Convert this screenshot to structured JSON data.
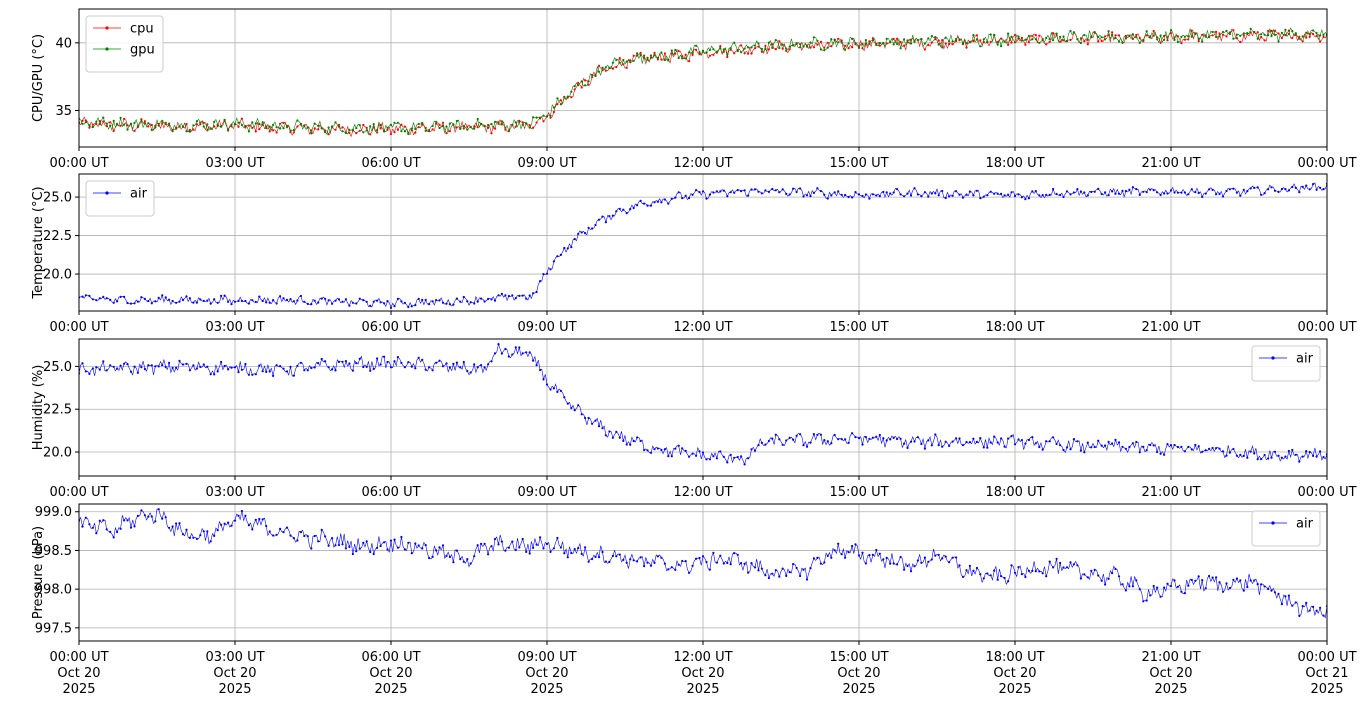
{
  "figure": {
    "x_tick_labels": [
      "00:00 UT",
      "03:00 UT",
      "06:00 UT",
      "09:00 UT",
      "12:00 UT",
      "15:00 UT",
      "18:00 UT",
      "21:00 UT",
      "00:00 UT"
    ],
    "x_tick_dates": [
      "Oct 20",
      "Oct 20",
      "Oct 20",
      "Oct 20",
      "Oct 20",
      "Oct 20",
      "Oct 20",
      "Oct 20",
      "Oct 21"
    ],
    "x_tick_years": [
      "2025",
      "2025",
      "2025",
      "2025",
      "2025",
      "2025",
      "2025",
      "2025",
      "2025"
    ]
  },
  "chart_data": [
    {
      "type": "line",
      "ylabel": "CPU/GPU (°C)",
      "ylim": [
        32.3,
        42.5
      ],
      "y_ticks": [
        35,
        40
      ],
      "y_tick_labels": [
        "35",
        "40"
      ],
      "xlim": [
        "2025-10-20 00:00",
        "2025-10-21 00:00"
      ],
      "grid": true,
      "legend_position": "upper-left",
      "x": [
        "00:00",
        "01:00",
        "02:00",
        "03:00",
        "04:00",
        "05:00",
        "06:00",
        "07:00",
        "08:00",
        "08:40",
        "09:00",
        "09:20",
        "09:40",
        "10:00",
        "10:20",
        "10:40",
        "11:00",
        "11:30",
        "12:00",
        "13:00",
        "14:00",
        "15:00",
        "16:00",
        "17:00",
        "18:00",
        "19:00",
        "20:00",
        "21:00",
        "22:00",
        "23:00",
        "24:00"
      ],
      "series": [
        {
          "name": "cpu",
          "color": "#ff0000",
          "values": [
            34.0,
            33.9,
            33.8,
            33.9,
            33.7,
            33.6,
            33.6,
            33.7,
            33.8,
            33.9,
            34.6,
            35.8,
            36.9,
            37.8,
            38.4,
            38.7,
            38.9,
            39.0,
            39.3,
            39.6,
            39.8,
            39.9,
            40.0,
            40.1,
            40.2,
            40.3,
            40.3,
            40.4,
            40.5,
            40.5,
            40.6
          ]
        },
        {
          "name": "gpu",
          "color": "#008000",
          "values": [
            34.1,
            34.0,
            33.9,
            34.0,
            33.8,
            33.7,
            33.7,
            33.8,
            33.9,
            34.0,
            34.7,
            35.9,
            37.0,
            37.9,
            38.5,
            38.8,
            39.0,
            39.1,
            39.4,
            39.7,
            39.9,
            40.0,
            40.1,
            40.2,
            40.3,
            40.4,
            40.4,
            40.5,
            40.6,
            40.6,
            40.7
          ]
        }
      ]
    },
    {
      "type": "line",
      "ylabel": "Temperature (°C)",
      "ylim": [
        17.6,
        26.5
      ],
      "y_ticks": [
        20.0,
        22.5,
        25.0
      ],
      "y_tick_labels": [
        "20.0",
        "22.5",
        "25.0"
      ],
      "xlim": [
        "2025-10-20 00:00",
        "2025-10-21 00:00"
      ],
      "grid": true,
      "legend_position": "upper-left",
      "x": [
        "00:00",
        "01:00",
        "02:00",
        "03:00",
        "04:00",
        "05:00",
        "06:00",
        "07:00",
        "08:00",
        "08:45",
        "09:00",
        "09:20",
        "09:40",
        "10:00",
        "10:20",
        "10:40",
        "11:00",
        "11:30",
        "12:00",
        "13:00",
        "14:00",
        "15:00",
        "16:00",
        "17:00",
        "18:00",
        "19:00",
        "20:00",
        "21:00",
        "22:00",
        "23:00",
        "24:00"
      ],
      "series": [
        {
          "name": "air",
          "color": "#0000ff",
          "values": [
            18.4,
            18.3,
            18.3,
            18.3,
            18.3,
            18.2,
            18.1,
            18.2,
            18.4,
            18.6,
            20.2,
            21.6,
            22.6,
            23.4,
            24.0,
            24.4,
            24.7,
            25.0,
            25.2,
            25.4,
            25.3,
            25.1,
            25.3,
            25.2,
            25.1,
            25.3,
            25.3,
            25.4,
            25.3,
            25.5,
            25.7
          ]
        }
      ]
    },
    {
      "type": "line",
      "ylabel": "Humidity (%)",
      "ylim": [
        18.6,
        26.6
      ],
      "y_ticks": [
        20.0,
        22.5,
        25.0
      ],
      "y_tick_labels": [
        "20.0",
        "22.5",
        "25.0"
      ],
      "xlim": [
        "2025-10-20 00:00",
        "2025-10-21 00:00"
      ],
      "grid": true,
      "legend_position": "upper-right",
      "x": [
        "00:00",
        "01:00",
        "02:00",
        "03:00",
        "04:00",
        "05:00",
        "06:00",
        "07:00",
        "07:50",
        "08:00",
        "08:40",
        "09:00",
        "09:20",
        "09:40",
        "10:00",
        "10:20",
        "10:40",
        "11:00",
        "11:30",
        "12:00",
        "12:50",
        "13:10",
        "14:00",
        "15:00",
        "16:00",
        "17:00",
        "18:00",
        "19:00",
        "20:00",
        "21:00",
        "22:00",
        "23:00",
        "24:00"
      ],
      "series": [
        {
          "name": "air",
          "color": "#0000ff",
          "values": [
            24.8,
            24.9,
            25.0,
            24.9,
            24.8,
            25.1,
            25.2,
            25.0,
            24.8,
            25.9,
            25.7,
            24.2,
            23.0,
            22.2,
            21.5,
            21.0,
            20.6,
            20.3,
            20.0,
            19.8,
            19.6,
            20.6,
            20.7,
            20.8,
            20.6,
            20.6,
            20.6,
            20.4,
            20.3,
            20.2,
            20.1,
            19.8,
            19.9
          ]
        }
      ]
    },
    {
      "type": "line",
      "ylabel": "Pressure (hPa)",
      "ylim": [
        997.33,
        999.1
      ],
      "y_ticks": [
        997.5,
        998.0,
        998.5,
        999.0
      ],
      "y_tick_labels": [
        "997.5",
        "998.0",
        "998.5",
        "999.0"
      ],
      "xlim": [
        "2025-10-20 00:00",
        "2025-10-21 00:00"
      ],
      "grid": true,
      "legend_position": "upper-right",
      "x": [
        "00:00",
        "00:40",
        "01:00",
        "01:30",
        "02:00",
        "02:30",
        "03:00",
        "03:30",
        "04:00",
        "04:30",
        "05:00",
        "05:30",
        "06:00",
        "06:30",
        "07:00",
        "07:30",
        "08:00",
        "08:30",
        "09:00",
        "09:30",
        "10:00",
        "11:00",
        "11:30",
        "12:00",
        "12:30",
        "13:00",
        "13:30",
        "14:00",
        "14:30",
        "15:00",
        "15:30",
        "16:00",
        "16:30",
        "17:00",
        "17:30",
        "18:00",
        "18:30",
        "19:00",
        "19:30",
        "20:00",
        "20:30",
        "21:00",
        "21:30",
        "22:00",
        "22:30",
        "23:00",
        "23:30",
        "24:00"
      ],
      "series": [
        {
          "name": "air",
          "color": "#0000ff",
          "values": [
            998.85,
            998.75,
            998.9,
            998.98,
            998.72,
            998.68,
            998.9,
            998.82,
            998.72,
            998.65,
            998.62,
            998.55,
            998.6,
            998.55,
            998.45,
            998.4,
            998.58,
            998.55,
            998.6,
            998.5,
            998.45,
            998.35,
            998.3,
            998.35,
            998.4,
            998.28,
            998.2,
            998.25,
            998.5,
            998.45,
            998.4,
            998.3,
            998.45,
            998.25,
            998.15,
            998.2,
            998.3,
            998.25,
            998.2,
            998.15,
            997.95,
            998.0,
            998.1,
            998.05,
            998.1,
            997.95,
            997.75,
            997.7
          ]
        }
      ]
    }
  ]
}
